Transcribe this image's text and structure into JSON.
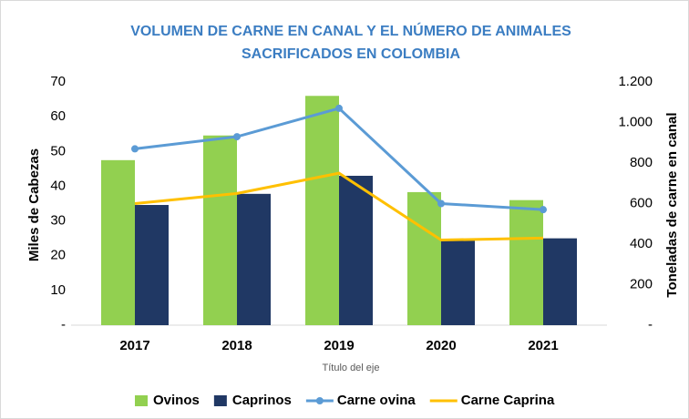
{
  "chart_data": {
    "type": "combo",
    "title": [
      "VOLUMEN DE CARNE EN CANAL Y EL NÚMERO DE ANIMALES",
      "SACRIFICADOS EN COLOMBIA"
    ],
    "x_label": "Título del eje",
    "y_label": "Miles de Cabezas",
    "y2_label": "Toneladas de carne en canal",
    "categories": [
      "2017",
      "2018",
      "2019",
      "2020",
      "2021"
    ],
    "ylim": [
      0,
      70
    ],
    "yticks": [
      {
        "value": 0,
        "label": "-"
      },
      10,
      20,
      30,
      40,
      50,
      60,
      70
    ],
    "y2lim": [
      0,
      1200
    ],
    "y2ticks": [
      {
        "value": 0,
        "label": "-"
      },
      200,
      400,
      600,
      800,
      {
        "value": 1000,
        "label": "1.000"
      },
      {
        "value": 1200,
        "label": "1.200"
      }
    ],
    "series": [
      {
        "name": "Ovinos",
        "type": "bar",
        "color": "#92d050",
        "values": [
          47.5,
          54.6,
          66,
          38.3,
          36
        ]
      },
      {
        "name": "Caprinos",
        "type": "bar",
        "color": "#203864",
        "values": [
          34.6,
          37.8,
          43,
          24.4,
          25
        ]
      },
      {
        "name": "Carne ovina",
        "type": "line",
        "axis": "y2",
        "color": "#5b9bd5",
        "values": [
          870,
          930,
          1070,
          600,
          570
        ]
      },
      {
        "name": "Carne Caprina",
        "type": "line",
        "axis": "y2",
        "color": "#ffc000",
        "values": [
          600,
          650,
          750,
          420,
          430
        ]
      }
    ],
    "legend": "bottom"
  }
}
